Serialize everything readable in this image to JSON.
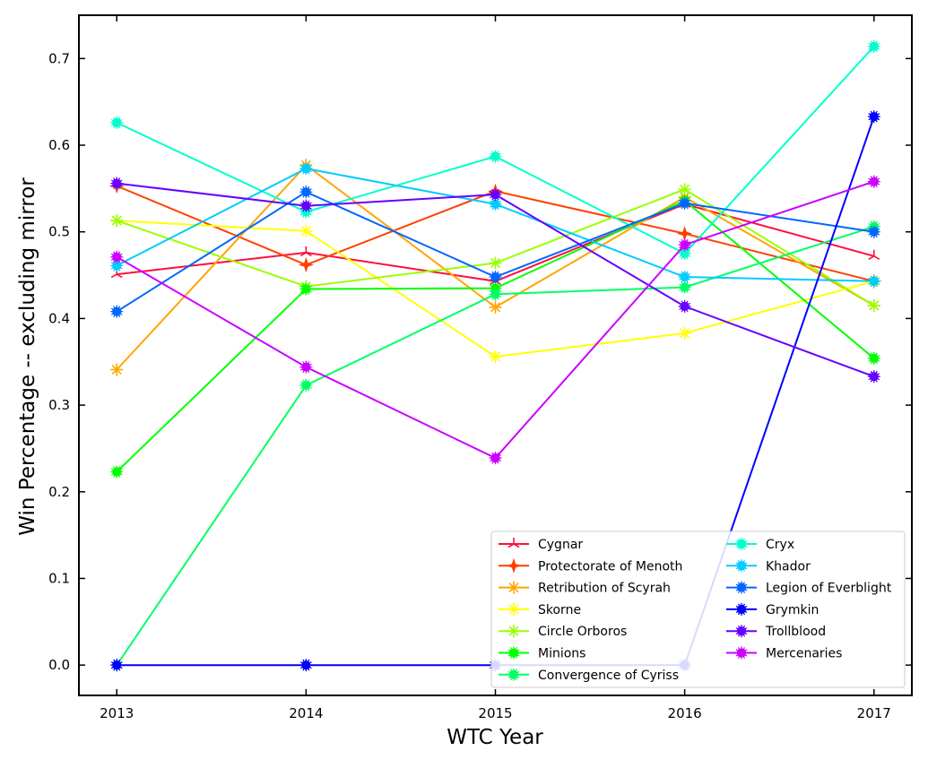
{
  "chart_data": {
    "type": "line",
    "title": "",
    "xlabel": "WTC Year",
    "ylabel": "Win Percentage -- excluding mirror",
    "x": [
      2013,
      2014,
      2015,
      2016,
      2017
    ],
    "xticks": [
      "2013",
      "2014",
      "2015",
      "2016",
      "2017"
    ],
    "yticks": [
      "0.0",
      "0.1",
      "0.2",
      "0.3",
      "0.4",
      "0.5",
      "0.6",
      "0.7"
    ],
    "xlim": [
      2012.8,
      2017.2
    ],
    "ylim": [
      -0.035,
      0.75
    ],
    "grid": false,
    "legend_position": "lower-right",
    "series": [
      {
        "name": "Cygnar",
        "color": "#ff0f3a",
        "marker": "tri-star",
        "values": [
          0.451,
          0.476,
          0.443,
          0.532,
          0.472
        ]
      },
      {
        "name": "Protectorate of Menoth",
        "color": "#ff4000",
        "marker": "four-star",
        "values": [
          0.553,
          0.462,
          0.547,
          0.498,
          0.443
        ]
      },
      {
        "name": "Retribution of Scyrah",
        "color": "#ffa500",
        "marker": "x-star",
        "values": [
          0.341,
          0.577,
          0.413,
          0.54,
          0.415
        ]
      },
      {
        "name": "Skorne",
        "color": "#ffff00",
        "marker": "x-star",
        "values": [
          0.513,
          0.501,
          0.356,
          0.383,
          0.443
        ]
      },
      {
        "name": "Circle Orboros",
        "color": "#99ff00",
        "marker": "x-star",
        "values": [
          0.513,
          0.437,
          0.464,
          0.549,
          0.415
        ]
      },
      {
        "name": "Minions",
        "color": "#00ff00",
        "marker": "star",
        "values": [
          0.223,
          0.434,
          0.435,
          0.536,
          0.354
        ]
      },
      {
        "name": "Convergence of Cyriss",
        "color": "#00ff66",
        "marker": "star",
        "values": [
          0.0,
          0.323,
          0.428,
          0.436,
          0.506
        ]
      },
      {
        "name": "Cryx",
        "color": "#00ffcc",
        "marker": "star",
        "values": [
          0.626,
          0.523,
          0.587,
          0.475,
          0.714
        ]
      },
      {
        "name": "Khador",
        "color": "#00ccff",
        "marker": "star",
        "values": [
          0.461,
          0.573,
          0.532,
          0.448,
          0.443
        ]
      },
      {
        "name": "Legion of Everblight",
        "color": "#0066ff",
        "marker": "star",
        "values": [
          0.408,
          0.546,
          0.448,
          0.533,
          0.5
        ]
      },
      {
        "name": "Grymkin",
        "color": "#0000ff",
        "marker": "star",
        "values": [
          0.0,
          0.0,
          0.0,
          0.0,
          0.633
        ]
      },
      {
        "name": "Trollblood",
        "color": "#6600ff",
        "marker": "star",
        "values": [
          0.556,
          0.53,
          0.543,
          0.414,
          0.333
        ]
      },
      {
        "name": "Mercenaries",
        "color": "#cc00ff",
        "marker": "star",
        "values": [
          0.471,
          0.344,
          0.239,
          0.485,
          0.558
        ]
      }
    ]
  }
}
